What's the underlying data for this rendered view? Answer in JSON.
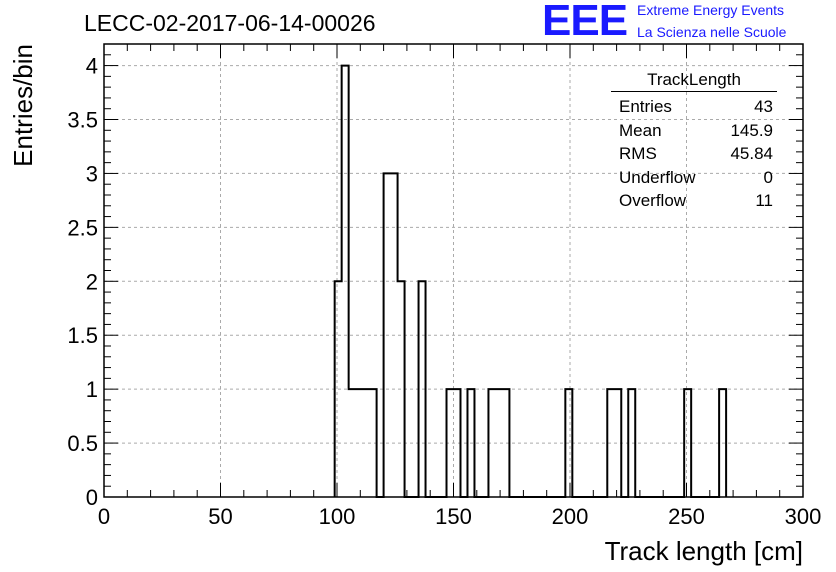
{
  "run_title": "LECC-02-2017-06-14-00026",
  "logo": {
    "text": "EEE",
    "line1": "Extreme Energy Events",
    "line2": "La Scienza nelle Scuole",
    "color": "#1a1aff"
  },
  "stats": {
    "title": "TrackLength",
    "rows": [
      {
        "label": "Entries",
        "value": "43"
      },
      {
        "label": "Mean",
        "value": "145.9"
      },
      {
        "label": "RMS",
        "value": "45.84"
      },
      {
        "label": "Underflow",
        "value": "0"
      },
      {
        "label": "Overflow",
        "value": "11"
      }
    ]
  },
  "chart_data": {
    "type": "bar",
    "histogram_style": "step",
    "title": "",
    "xlabel": "Track length [cm]",
    "ylabel": "Entries/bin",
    "xlim": [
      0,
      300
    ],
    "ylim": [
      0,
      4.2
    ],
    "grid": true,
    "bin_width": 3,
    "x_ticks": [
      0,
      50,
      100,
      150,
      200,
      250,
      300
    ],
    "y_ticks": [
      0,
      0.5,
      1,
      1.5,
      2,
      2.5,
      3,
      3.5,
      4
    ],
    "x_tick_labels": [
      "0",
      "50",
      "100",
      "150",
      "200",
      "250",
      "300"
    ],
    "y_tick_labels": [
      "0",
      "0.5",
      "1",
      "1.5",
      "2",
      "2.5",
      "3",
      "3.5",
      "4"
    ],
    "bins": [
      {
        "x": 99,
        "value": 2
      },
      {
        "x": 102,
        "value": 4
      },
      {
        "x": 105,
        "value": 1
      },
      {
        "x": 108,
        "value": 1
      },
      {
        "x": 111,
        "value": 1
      },
      {
        "x": 114,
        "value": 1
      },
      {
        "x": 120,
        "value": 3
      },
      {
        "x": 123,
        "value": 3
      },
      {
        "x": 126,
        "value": 2
      },
      {
        "x": 135,
        "value": 2
      },
      {
        "x": 147,
        "value": 1
      },
      {
        "x": 150,
        "value": 1
      },
      {
        "x": 156,
        "value": 1
      },
      {
        "x": 165,
        "value": 1
      },
      {
        "x": 168,
        "value": 1
      },
      {
        "x": 171,
        "value": 1
      },
      {
        "x": 198,
        "value": 1
      },
      {
        "x": 216,
        "value": 1
      },
      {
        "x": 219,
        "value": 1
      },
      {
        "x": 225,
        "value": 1
      },
      {
        "x": 249,
        "value": 1
      },
      {
        "x": 264,
        "value": 1
      }
    ]
  }
}
